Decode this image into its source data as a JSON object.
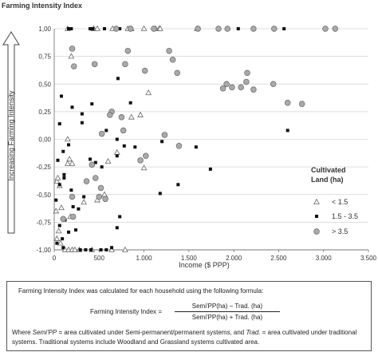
{
  "chart_data": {
    "type": "scatter",
    "title": "Farming Intensity Index",
    "ylabel": "Farming Intensity Index",
    "xlabel": "Income ($ PPP)",
    "y_arrow_label": "Increasing Farming Intensity",
    "xlim": [
      0,
      3500
    ],
    "ylim": [
      -1,
      1
    ],
    "x_ticks": [
      0,
      500,
      1000,
      1500,
      2000,
      2500,
      3000,
      3500
    ],
    "x_tick_labels": [
      "0",
      "500",
      "1.000",
      "1.500",
      "2.000",
      "2.500",
      "3.000",
      "3.500"
    ],
    "y_ticks": [
      -1,
      -0.75,
      -0.5,
      -0.25,
      0,
      0.25,
      0.5,
      0.75,
      1
    ],
    "y_tick_labels": [
      "-1,00",
      "-0,75",
      "-0,50",
      "-0,25",
      "0,00",
      "0,25",
      "0,50",
      "0,75",
      "1,00"
    ],
    "grid": "horizontal",
    "legend": {
      "title": "Cultivated Land (ha)",
      "title_line1": "Cultivated",
      "title_line2": "Land (ha)",
      "placement": "right"
    },
    "series": [
      {
        "name": "< 1.5",
        "marker": "triangle",
        "color": "#777777",
        "points": [
          [
            150,
            1.0
          ],
          [
            440,
            1.0
          ],
          [
            440,
            1.0
          ],
          [
            480,
            1.0
          ],
          [
            650,
            1.0
          ],
          [
            820,
            1.0
          ],
          [
            860,
            1.0
          ],
          [
            1000,
            1.0
          ],
          [
            1130,
            1.0
          ],
          [
            1170,
            1.0
          ],
          [
            1180,
            1.0
          ],
          [
            1590,
            1.0
          ],
          [
            30,
            -0.38
          ],
          [
            60,
            -0.42
          ],
          [
            20,
            -0.65
          ],
          [
            50,
            -0.83
          ],
          [
            30,
            -0.9
          ],
          [
            70,
            -0.94
          ],
          [
            120,
            -1.0
          ],
          [
            160,
            -1.0
          ],
          [
            200,
            -1.0
          ],
          [
            640,
            -1.0
          ],
          [
            790,
            -1.0
          ],
          [
            190,
            0.75
          ],
          [
            170,
            -0.18
          ],
          [
            330,
            -0.57
          ],
          [
            180,
            -0.7
          ],
          [
            480,
            -0.55
          ],
          [
            560,
            -0.5
          ],
          [
            1050,
            0.42
          ],
          [
            1000,
            -0.26
          ],
          [
            200,
            -0.22
          ],
          [
            150,
            -0.22
          ],
          [
            600,
            -0.2
          ],
          [
            860,
            0.2
          ],
          [
            960,
            0.22
          ],
          [
            150,
            0.0
          ],
          [
            80,
            -0.62
          ],
          [
            40,
            -0.35
          ],
          [
            700,
            -0.12
          ],
          [
            230,
            -1.0
          ],
          [
            420,
            -1.0
          ],
          [
            280,
            -1.0
          ]
        ]
      },
      {
        "name": "1.5 - 3.5",
        "marker": "square",
        "color": "#111111",
        "points": [
          [
            160,
            1.0
          ],
          [
            190,
            1.0
          ],
          [
            400,
            1.0
          ],
          [
            430,
            1.0
          ],
          [
            560,
            1.0
          ],
          [
            730,
            1.0
          ],
          [
            2050,
            1.0
          ],
          [
            2560,
            1.0
          ],
          [
            80,
            0.39
          ],
          [
            60,
            0.14
          ],
          [
            200,
            0.29
          ],
          [
            310,
            0.23
          ],
          [
            310,
            0.15
          ],
          [
            710,
            0.55
          ],
          [
            420,
            0.32
          ],
          [
            850,
            0.33
          ],
          [
            2600,
            0.08
          ],
          [
            580,
            0.08
          ],
          [
            700,
            0.0
          ],
          [
            780,
            -0.06
          ],
          [
            1580,
            -0.07
          ],
          [
            900,
            -0.07
          ],
          [
            1200,
            -0.02
          ],
          [
            160,
            -0.05
          ],
          [
            100,
            -0.11
          ],
          [
            40,
            -0.19
          ],
          [
            110,
            -0.35
          ],
          [
            400,
            -0.18
          ],
          [
            460,
            -0.21
          ],
          [
            530,
            -0.25
          ],
          [
            700,
            -0.15
          ],
          [
            1740,
            -0.27
          ],
          [
            1380,
            -0.41
          ],
          [
            110,
            -0.32
          ],
          [
            60,
            -0.41
          ],
          [
            190,
            -0.46
          ],
          [
            330,
            -0.52
          ],
          [
            210,
            -0.61
          ],
          [
            270,
            -0.63
          ],
          [
            1180,
            -0.49
          ],
          [
            120,
            -0.73
          ],
          [
            160,
            -0.84
          ],
          [
            90,
            -0.9
          ],
          [
            30,
            -0.94
          ],
          [
            100,
            -0.98
          ],
          [
            290,
            -1.0
          ],
          [
            350,
            -1.0
          ],
          [
            410,
            -1.0
          ],
          [
            520,
            -1.0
          ],
          [
            580,
            -1.0
          ],
          [
            640,
            -0.98
          ],
          [
            700,
            -0.8
          ],
          [
            730,
            -0.7
          ],
          [
            20,
            -0.55
          ],
          [
            60,
            -0.78
          ],
          [
            240,
            -0.82
          ]
        ]
      },
      {
        "name": "> 3.5",
        "marker": "circle",
        "color": "#aaaaaa",
        "points": [
          [
            690,
            1.0
          ],
          [
            850,
            1.0
          ],
          [
            1110,
            1.0
          ],
          [
            1600,
            1.0
          ],
          [
            1830,
            1.0
          ],
          [
            1930,
            1.0
          ],
          [
            2220,
            1.0
          ],
          [
            2450,
            1.0
          ],
          [
            3020,
            1.0
          ],
          [
            3130,
            1.0
          ],
          [
            200,
            0.82
          ],
          [
            820,
            0.8
          ],
          [
            1280,
            0.8
          ],
          [
            1320,
            0.72
          ],
          [
            450,
            0.68
          ],
          [
            790,
            0.68
          ],
          [
            220,
            0.66
          ],
          [
            1010,
            0.62
          ],
          [
            1370,
            0.6
          ],
          [
            2150,
            0.6
          ],
          [
            2140,
            0.52
          ],
          [
            2220,
            0.45
          ],
          [
            1920,
            0.5
          ],
          [
            1980,
            0.47
          ],
          [
            2080,
            0.47
          ],
          [
            2440,
            0.5
          ],
          [
            1880,
            0.46
          ],
          [
            2600,
            0.33
          ],
          [
            2760,
            0.32
          ],
          [
            530,
            0.05
          ],
          [
            770,
            0.08
          ],
          [
            1230,
            0.04
          ],
          [
            1390,
            -0.06
          ],
          [
            1020,
            -0.15
          ],
          [
            960,
            -0.19
          ],
          [
            640,
            0.25
          ],
          [
            620,
            0.22
          ],
          [
            750,
            0.2
          ],
          [
            420,
            -0.23
          ],
          [
            360,
            -0.38
          ],
          [
            200,
            -0.52
          ],
          [
            500,
            -0.52
          ],
          [
            570,
            -0.54
          ],
          [
            460,
            -0.35
          ],
          [
            210,
            -0.7
          ],
          [
            100,
            -0.72
          ],
          [
            520,
            -0.44
          ]
        ]
      }
    ]
  },
  "note": {
    "intro": "Farming Intensity Index was calculated for each household using the following formula:",
    "lhs": "Farming Intensity Index =",
    "numerator": "Semi'PP(ha) − Trad. (ha)",
    "denominator": "Semi'PP(ha) + Trad. (ha)",
    "where_prefix": "Where ",
    "where_term": "Semi'PP",
    "where_mid": " = area cultivated under Semi-permanent/permanent systems, and ",
    "where_term2": "Trad.",
    "where_rest": " = area cultivated under traditional systems. Traditional systems include Woodland and Grassland systems cultivated area."
  }
}
